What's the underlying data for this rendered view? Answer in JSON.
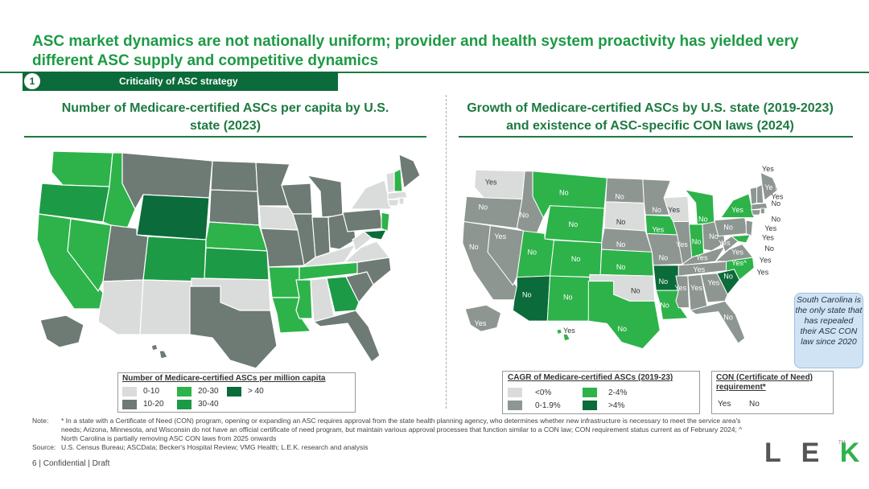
{
  "title": "ASC market dynamics are not nationally uniform; provider and health system proactivity has yielded very different ASC supply and competitive dynamics",
  "banner": {
    "number": "1",
    "label": "Criticality of ASC strategy"
  },
  "left_panel": {
    "title": "Number of Medicare-certified ASCs per capita by U.S. state (2023)",
    "legend": {
      "title": "Number of Medicare-certified ASCs per million capita",
      "items": [
        {
          "label": "0-10",
          "color": "#d9dcdb"
        },
        {
          "label": "10-20",
          "color": "#6e7a74"
        },
        {
          "label": "20-30",
          "color": "#2db34a"
        },
        {
          "label": "30-40",
          "color": "#1d9a45"
        },
        {
          "label": "> 40",
          "color": "#0b6b3a"
        }
      ]
    }
  },
  "right_panel": {
    "title": "Growth of Medicare-certified ASCs by U.S. state (2019-2023) and existence of ASC-specific CON laws (2024)",
    "legend_cagr": {
      "title": "CAGR of Medicare-certified ASCs (2019-23)",
      "items": [
        {
          "label": "<0%",
          "color": "#d9dcdb"
        },
        {
          "label": "0-1.9%",
          "color": "#8e9692"
        },
        {
          "label": "2-4%",
          "color": "#2db34a"
        },
        {
          "label": ">4%",
          "color": "#0b6b3a"
        }
      ]
    },
    "legend_con": {
      "title": "CON (Certificate of Need) requirement*",
      "yes": "Yes",
      "no": "No"
    },
    "callout": "South Carolina is the only state that has repealed their ASC CON law since 2020",
    "labels": {
      "wa": "Yes",
      "or": "No",
      "ca": "No",
      "nv": "Yes",
      "id": "No",
      "mt": "No",
      "wy": "No",
      "ut": "No",
      "co": "No",
      "az": "No",
      "nm": "No",
      "nd": "No",
      "sd": "No",
      "ne": "No",
      "ks": "No",
      "ok": "No",
      "tx": "No",
      "mn": "No",
      "ia": "Yes",
      "mo": "No",
      "ar": "No",
      "la": "No",
      "wi": "Yes",
      "il": "Yes",
      "mi": "No",
      "in": "No",
      "oh": "No",
      "ky": "Yes",
      "tn": "Yes",
      "ms": "Yes",
      "al": "Yes",
      "ga": "Yes",
      "fl": "No",
      "sc": "No",
      "nc": "Yes^",
      "va": "Yes",
      "wv": "Yes",
      "pa": "No",
      "ny": "Yes",
      "me": "Yes",
      "vt": "Ye s",
      "nh": "No",
      "ma": "Yes",
      "ri": "No",
      "ct": "Yes",
      "nj": "Yes",
      "de": "No",
      "md": "Yes",
      "dc": "Yes",
      "ak": "Yes",
      "hi": "Yes"
    }
  },
  "notes": {
    "note_label": "Note:",
    "note_text": "* In a state with a Certificate of Need (CON) program, opening or expanding an ASC requires approval from the state health planning agency, who determines whether new infrastructure is necessary to meet the service area's needs; Arizona, Minnesota, and Wisconsin do not have an official certificate of need program, but maintain various approval processes that function similar to a CON law; CON requirement status current as of February 2024; ^ North Carolina is partially removing ASC CON laws from 2025 onwards",
    "source_label": "Source:",
    "source_text": "U.S. Census Bureau; ASCData; Becker's Hospital Review; VMG Health; L.E.K. research and analysis"
  },
  "footer": {
    "page": "6",
    "text": "| Confidential | Draft"
  },
  "logo": {
    "letters": "LEK",
    "tm": "TM"
  }
}
